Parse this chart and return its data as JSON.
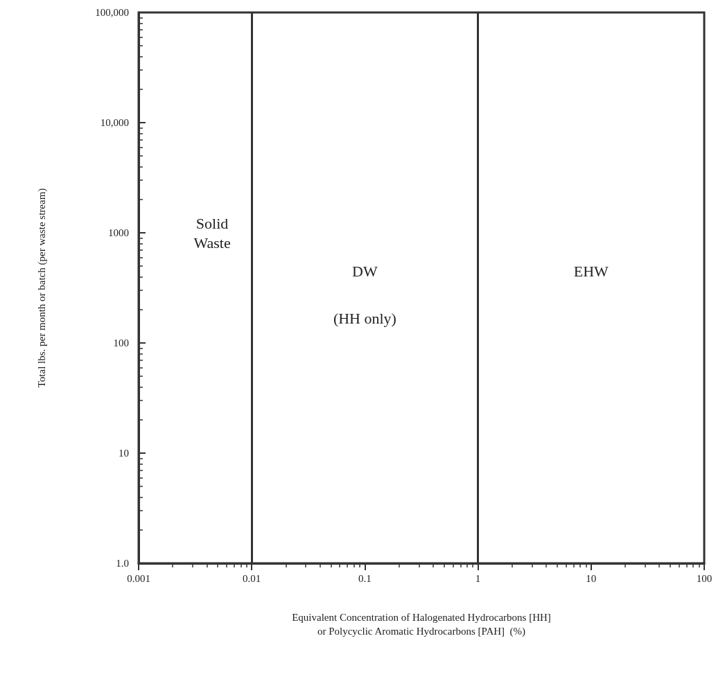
{
  "chart_data": {
    "type": "line",
    "xlabel": "Equivalent Concentration of Halogenated Hydrocarbons [HH]\nor Polycyclic Aromatic Hydrocarbons [PAH]  (%)",
    "ylabel": "Total lbs. per month or batch (per waste stream)",
    "log": "xy",
    "grid": false,
    "xlim": [
      0.001,
      100
    ],
    "xticks": [
      0.001,
      0.01,
      0.1,
      1,
      10,
      100
    ],
    "ylim": [
      1,
      100000
    ],
    "yticks": [
      {
        "value": 1,
        "label": "1.0"
      },
      10,
      100,
      1000,
      {
        "value": 10000,
        "label": "10,000"
      },
      {
        "value": 100000,
        "label": "100,000"
      }
    ],
    "ref_lines": [
      {
        "axis": "x",
        "value": 0.01,
        "color": "#333333"
      },
      {
        "axis": "x",
        "value": 1,
        "color": "#333333"
      }
    ],
    "annotations": [
      "Solid\nWaste",
      "DW",
      "(HH only)",
      "EHW"
    ]
  }
}
